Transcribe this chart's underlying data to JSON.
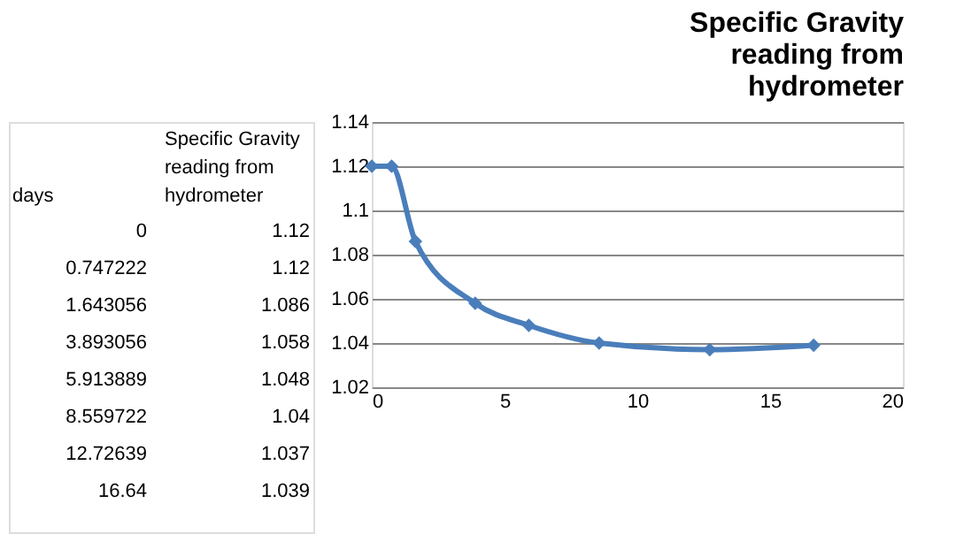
{
  "chart_data": [
    {
      "type": "other",
      "annotations": [
        "Specific Gravity reading from hydrometer",
        "days",
        "0",
        "1.12",
        "0.747222",
        "1.12",
        "1.643056",
        "1.086",
        "3.893056",
        "1.058",
        "5.913889",
        "1.048",
        "8.559722",
        "1.04",
        "12.72639",
        "1.037",
        "16.64",
        "1.039"
      ]
    },
    {
      "type": "line",
      "title": "Specific Gravity reading from hydrometer",
      "x": [
        0,
        0.747222,
        1.643056,
        3.893056,
        5.913889,
        8.559722,
        12.72639,
        16.64
      ],
      "series": [
        {
          "color": "#4a7ebb",
          "values": [
            1.12,
            1.12,
            1.086,
            1.058,
            1.048,
            1.04,
            1.037,
            1.039
          ]
        }
      ],
      "xlim": [
        0,
        20
      ],
      "xticks": [
        0,
        5,
        10,
        15,
        20
      ],
      "ylim": [
        1.02,
        1.14
      ],
      "yticks": [
        1.02,
        1.04,
        1.06,
        1.08,
        1.1,
        1.12,
        1.14
      ],
      "grid": "y",
      "marker": "diamond",
      "line_style": "solid",
      "legend": false
    }
  ]
}
